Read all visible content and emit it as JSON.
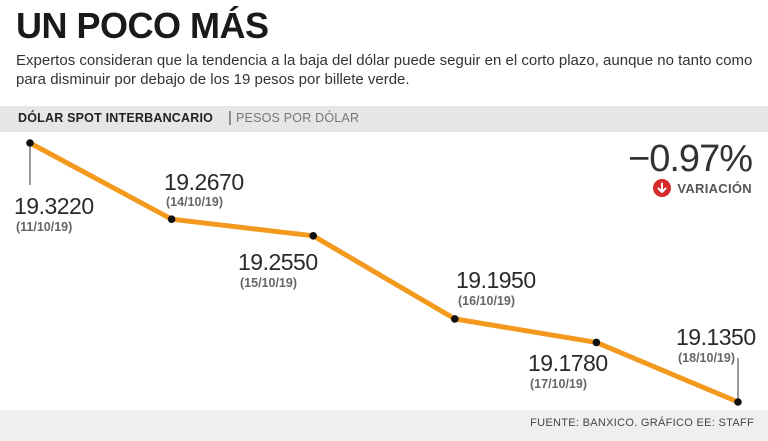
{
  "header": {
    "title": "UN POCO MÁS",
    "subtitle": "Expertos consideran que la tendencia a la baja del dólar puede seguir en el corto plazo, aunque no tanto como para disminuir por debajo de los 19 pesos por billete verde."
  },
  "band": {
    "label": "DÓLAR SPOT INTERBANCARIO",
    "separator": "|",
    "unit": "PESOS POR DÓLAR"
  },
  "variation": {
    "value": "−0.97%",
    "label": "VARIACIÓN",
    "icon": "arrow-down-circle-icon"
  },
  "source": "FUENTE: BANXICO. GRÁFICO EE: STAFF",
  "colors": {
    "line": "#f39a1e",
    "point": "#111111",
    "accent": "#d62b2b",
    "band": "#e6e6e6"
  },
  "chart_data": {
    "type": "line",
    "series": [
      {
        "values": [
          19.322,
          19.267,
          19.255,
          19.195,
          19.178,
          19.135
        ],
        "labels": [
          "19.3220",
          "19.2670",
          "19.2550",
          "19.1950",
          "19.1780",
          "19.1350"
        ]
      }
    ],
    "categories": [
      "(11/10/19)",
      "(14/10/19)",
      "(15/10/19)",
      "(16/10/19)",
      "(17/10/19)",
      "(18/10/19)"
    ],
    "title": "DÓLAR SPOT INTERBANCARIO",
    "ylabel": "PESOS POR DÓLAR",
    "grid": false
  }
}
